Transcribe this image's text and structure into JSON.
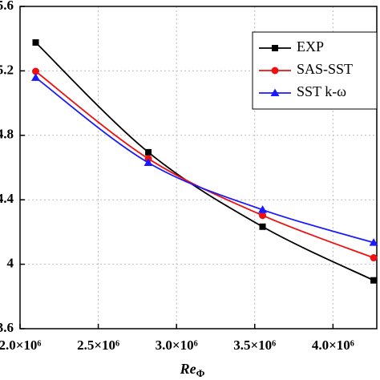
{
  "chart_data": {
    "type": "line",
    "xlabel": "Re",
    "xlabel_subscript": "Φ",
    "x": [
      2100000,
      2820000,
      3550000,
      4260000
    ],
    "series": [
      {
        "name": "EXP",
        "color": "#000000",
        "marker": "square",
        "values": [
          5.376,
          4.695,
          4.233,
          3.9
        ]
      },
      {
        "name": "SAS-SST",
        "color": "#ee1111",
        "marker": "circle",
        "values": [
          5.197,
          4.655,
          4.303,
          4.04
        ]
      },
      {
        "name": "SST k-ω",
        "color": "#1a1aff",
        "marker": "triangle",
        "values": [
          5.158,
          4.63,
          4.338,
          4.134
        ]
      }
    ],
    "xlim": [
      2000000,
      4280000
    ],
    "xticks": [
      {
        "value": 2000000,
        "label": "2.0×10⁶"
      },
      {
        "value": 2500000,
        "label": "2.5×10⁶"
      },
      {
        "value": 3000000,
        "label": "3.0×10⁶"
      },
      {
        "value": 3500000,
        "label": "3.5×10⁶"
      },
      {
        "value": 4000000,
        "label": "4.0×10⁶"
      }
    ],
    "ylim": [
      3.6,
      5.6
    ],
    "yticks": [
      3.6,
      4.0,
      4.4,
      4.8,
      5.2,
      5.6
    ],
    "grid": true,
    "legend": "upper right"
  }
}
